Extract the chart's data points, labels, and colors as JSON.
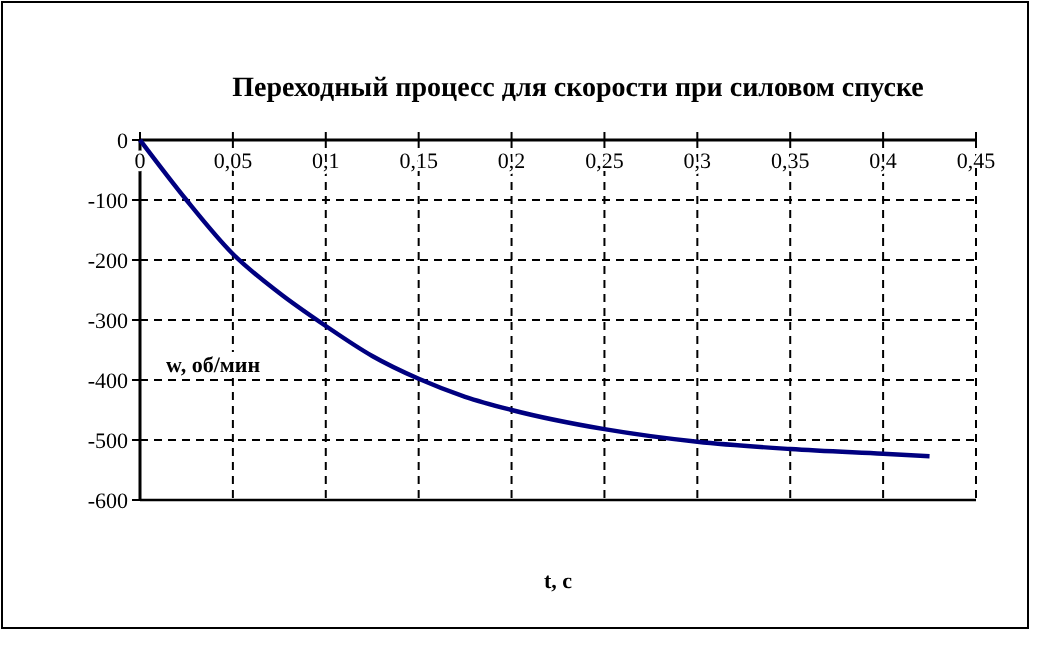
{
  "chart_data": {
    "type": "line",
    "title": "Переходный процесс для скорости при силовом спуске",
    "xlabel": "t, с",
    "ylabel": "w, об/мин",
    "x": [
      0,
      0.025,
      0.05,
      0.075,
      0.1,
      0.125,
      0.15,
      0.175,
      0.2,
      0.25,
      0.3,
      0.35,
      0.4,
      0.425
    ],
    "series": [
      {
        "color": "#000080",
        "values": [
          0,
          -100,
          -190,
          -255,
          -310,
          -360,
          -398,
          -428,
          -450,
          -482,
          -503,
          -515,
          -523,
          -527
        ]
      }
    ],
    "xlim": [
      0,
      0.45
    ],
    "ylim": [
      -600,
      0
    ],
    "xticks": [
      {
        "value": 0,
        "label": "0"
      },
      {
        "value": 0.05,
        "label": "0,05"
      },
      {
        "value": 0.1,
        "label": "0,1"
      },
      {
        "value": 0.15,
        "label": "0,15"
      },
      {
        "value": 0.2,
        "label": "0,2"
      },
      {
        "value": 0.25,
        "label": "0,25"
      },
      {
        "value": 0.3,
        "label": "0,3"
      },
      {
        "value": 0.35,
        "label": "0,35"
      },
      {
        "value": 0.4,
        "label": "0,4"
      },
      {
        "value": 0.45,
        "label": "0,45"
      }
    ],
    "yticks": [
      -600,
      -500,
      -400,
      -300,
      -200,
      -100,
      0
    ],
    "grid": true,
    "marker": "none",
    "line_style": "solid"
  }
}
